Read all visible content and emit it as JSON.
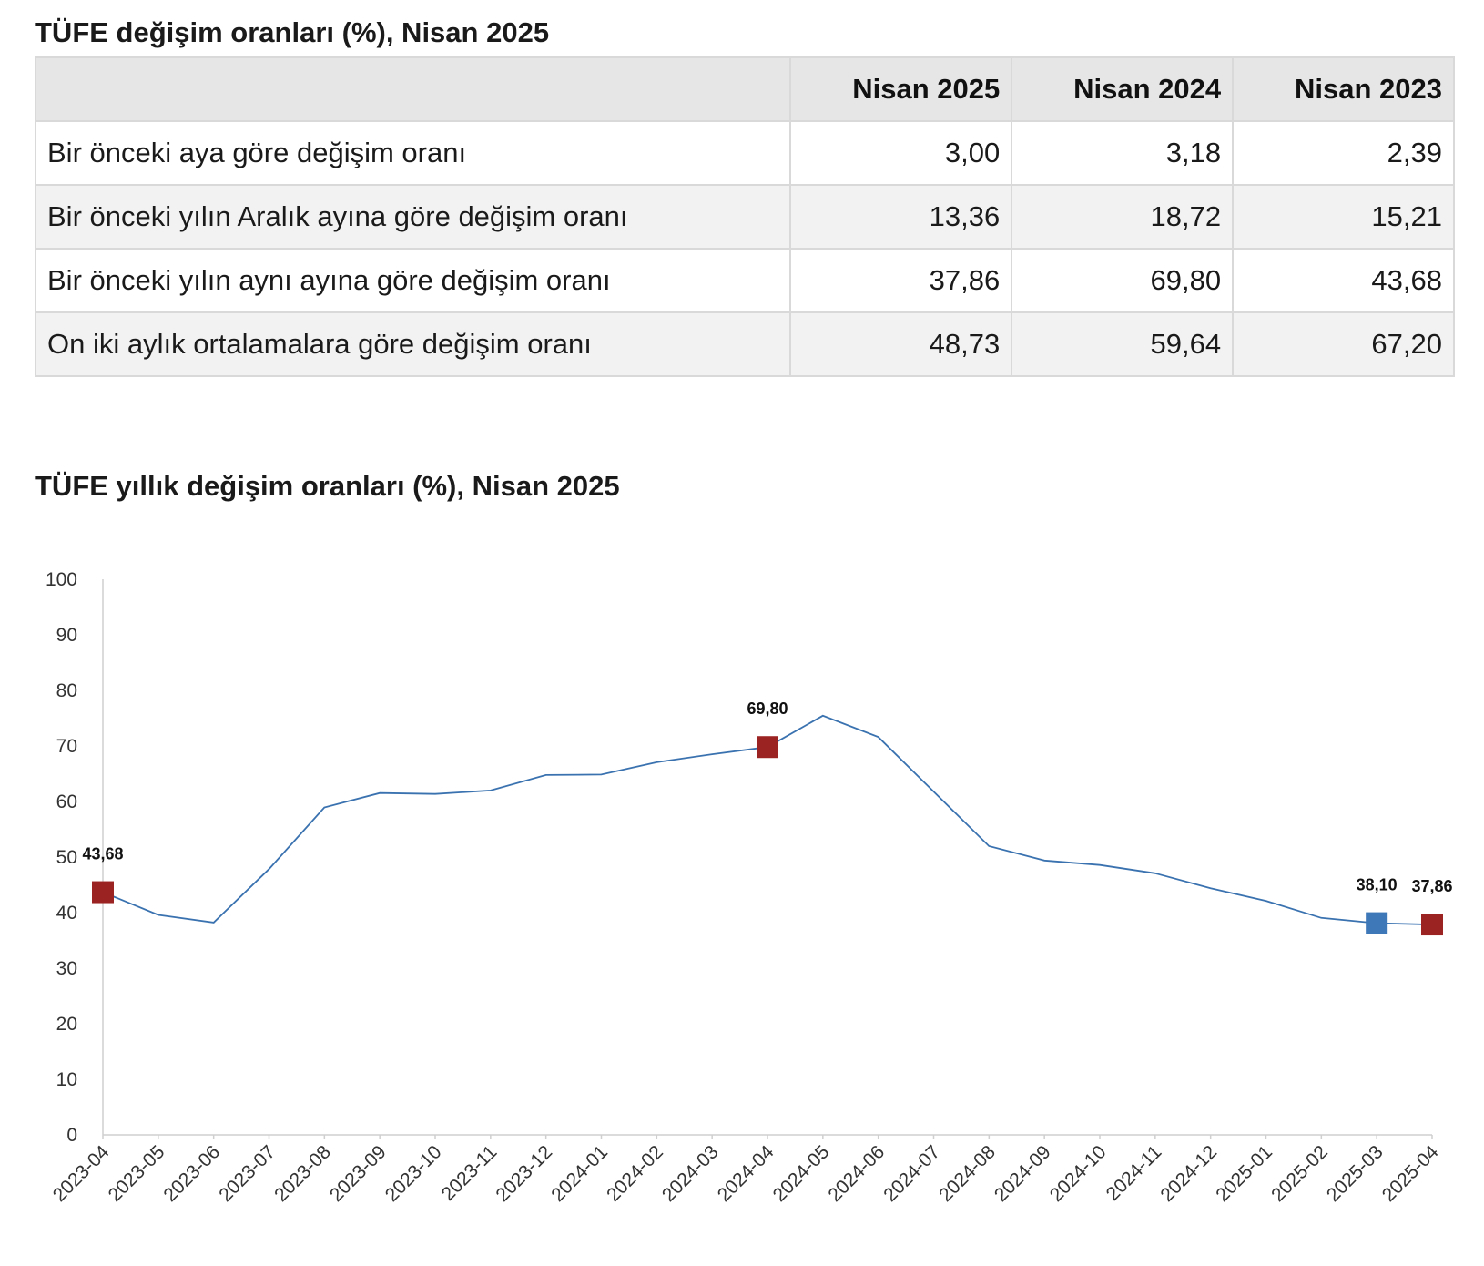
{
  "table": {
    "title": "TÜFE değişim oranları (%), Nisan 2025",
    "headers": [
      "",
      "Nisan 2025",
      "Nisan 2024",
      "Nisan 2023"
    ],
    "rows": [
      {
        "label": "Bir önceki aya göre değişim oranı",
        "values": [
          "3,00",
          "3,18",
          "2,39"
        ]
      },
      {
        "label": "Bir önceki yılın Aralık ayına göre değişim oranı",
        "values": [
          "13,36",
          "18,72",
          "15,21"
        ]
      },
      {
        "label": "Bir önceki yılın aynı ayına göre değişim oranı",
        "values": [
          "37,86",
          "69,80",
          "43,68"
        ]
      },
      {
        "label": "On iki aylık ortalamalara göre değişim oranı",
        "values": [
          "48,73",
          "59,64",
          "67,20"
        ]
      }
    ]
  },
  "chart_data": {
    "type": "line",
    "title": "TÜFE yıllık değişim oranları (%), Nisan 2025",
    "xlabel": "",
    "ylabel": "",
    "ylim": [
      0,
      100
    ],
    "yticks": [
      0,
      10,
      20,
      30,
      40,
      50,
      60,
      70,
      80,
      90,
      100
    ],
    "grid": false,
    "line_color": "#3a72b0",
    "categories": [
      "2023-04",
      "2023-05",
      "2023-06",
      "2023-07",
      "2023-08",
      "2023-09",
      "2023-10",
      "2023-11",
      "2023-12",
      "2024-01",
      "2024-02",
      "2024-03",
      "2024-04",
      "2024-05",
      "2024-06",
      "2024-07",
      "2024-08",
      "2024-09",
      "2024-10",
      "2024-11",
      "2024-12",
      "2025-01",
      "2025-02",
      "2025-03",
      "2025-04"
    ],
    "series": [
      {
        "values": [
          43.68,
          39.59,
          38.21,
          47.83,
          58.94,
          61.53,
          61.36,
          61.98,
          64.77,
          64.86,
          67.07,
          68.5,
          69.8,
          75.45,
          71.6,
          61.78,
          51.97,
          49.38,
          48.58,
          47.09,
          44.38,
          42.12,
          39.05,
          38.1,
          37.86
        ]
      }
    ],
    "markers": [
      {
        "index": 0,
        "label": "43,68",
        "color": "#9b2423"
      },
      {
        "index": 12,
        "label": "69,80",
        "color": "#9b2423"
      },
      {
        "index": 23,
        "label": "38,10",
        "color": "#3e78b8"
      },
      {
        "index": 24,
        "label": "37,86",
        "color": "#9b2423"
      }
    ]
  }
}
